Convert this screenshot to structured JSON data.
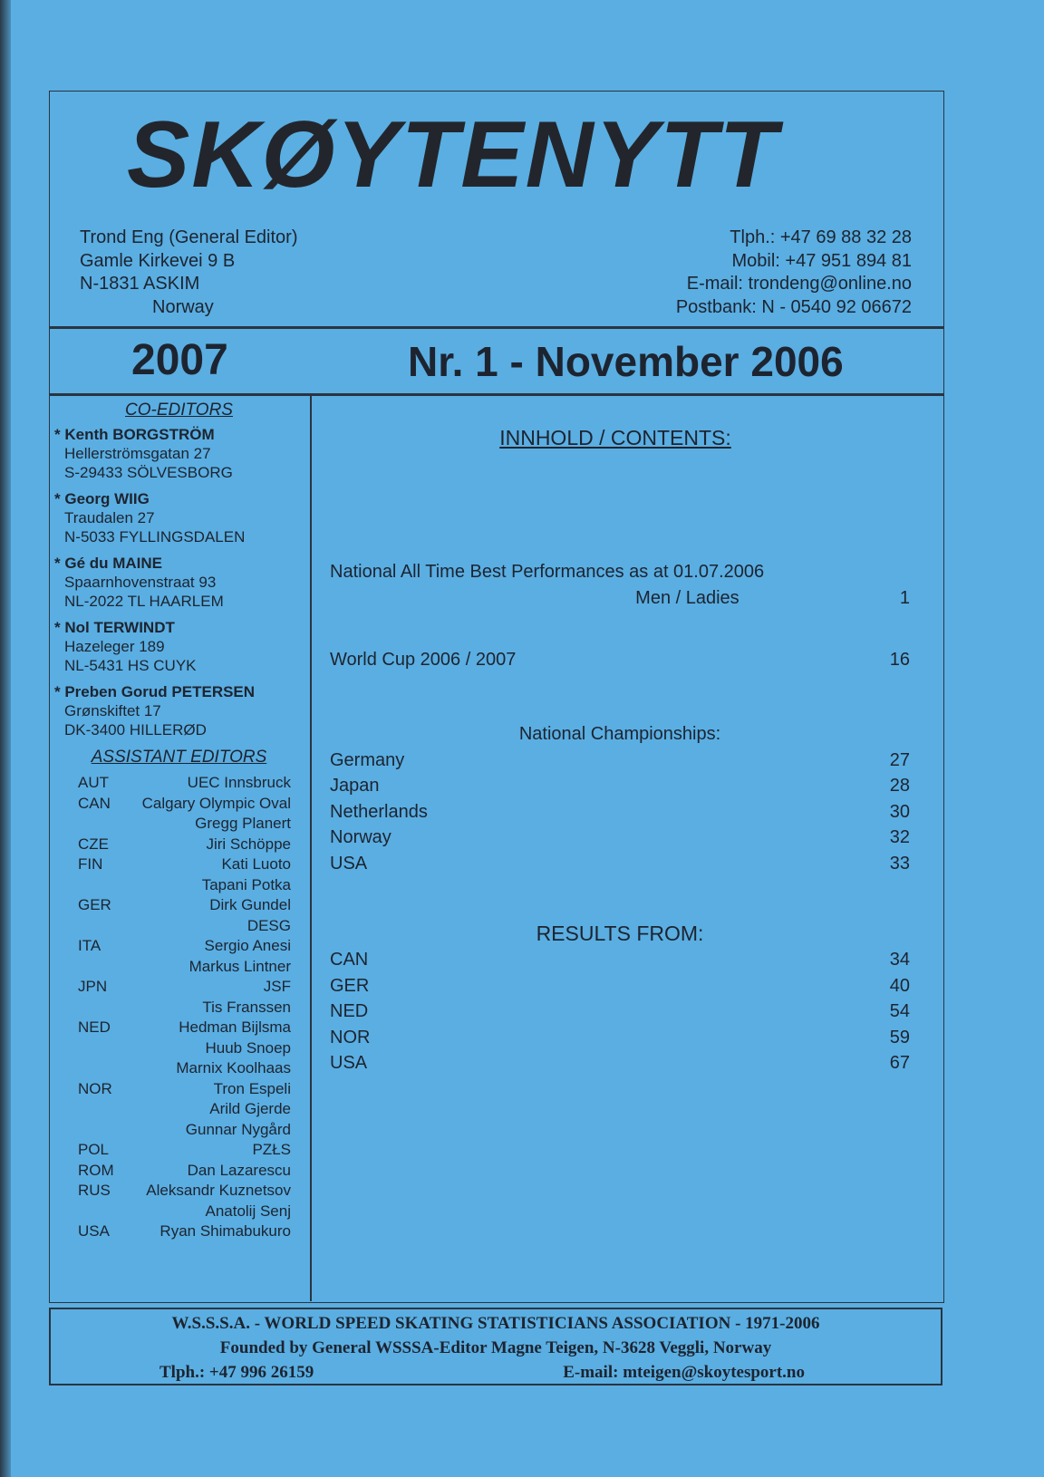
{
  "masthead": {
    "title": "SKØYTENYTT"
  },
  "editor": {
    "lines": [
      "Trond Eng (General Editor)",
      "Gamle Kirkevei 9 B",
      "N-1831 ASKIM",
      "Norway"
    ]
  },
  "contact": {
    "lines": [
      "Tlph.: +47  69 88 32 28",
      "Mobil:  +47  951 894 81",
      "E-mail:  trondeng@online.no",
      "Postbank:  N - 0540 92 06672"
    ]
  },
  "year": "2007",
  "issue": "Nr. 1 - November 2006",
  "co_editors": {
    "heading": "CO-EDITORS",
    "people": [
      {
        "name": "Kenth BORGSTRÖM",
        "addr1": "Hellerströmsgatan 27",
        "addr2": "S-29433 SÖLVESBORG"
      },
      {
        "name": "Georg WIIG",
        "addr1": "Traudalen 27",
        "addr2": "N-5033 FYLLINGSDALEN"
      },
      {
        "name": "Gé du MAINE",
        "addr1": "Spaarnhovenstraat 93",
        "addr2": "NL-2022 TL HAARLEM"
      },
      {
        "name": "Nol TERWINDT",
        "addr1": "Hazeleger 189",
        "addr2": "NL-5431 HS CUYK"
      },
      {
        "name": "Preben Gorud PETERSEN",
        "addr1": "Grønskiftet 17",
        "addr2": "DK-3400 HILLERØD"
      }
    ]
  },
  "assistant_editors": {
    "heading": "ASSISTANT EDITORS",
    "rows": [
      {
        "c": "AUT",
        "n": "UEC Innsbruck"
      },
      {
        "c": "CAN",
        "n": "Calgary Olympic Oval"
      },
      {
        "c": "",
        "n": "Gregg Planert"
      },
      {
        "c": "CZE",
        "n": "Jiri Schöppe"
      },
      {
        "c": "FIN",
        "n": "Kati Luoto"
      },
      {
        "c": "",
        "n": "Tapani Potka"
      },
      {
        "c": "GER",
        "n": "Dirk Gundel"
      },
      {
        "c": "",
        "n": "DESG"
      },
      {
        "c": "ITA",
        "n": "Sergio Anesi"
      },
      {
        "c": "",
        "n": "Markus Lintner"
      },
      {
        "c": "JPN",
        "n": "JSF"
      },
      {
        "c": "",
        "n": "Tis Franssen"
      },
      {
        "c": "NED",
        "n": "Hedman Bijlsma"
      },
      {
        "c": "",
        "n": "Huub Snoep"
      },
      {
        "c": "",
        "n": "Marnix Koolhaas"
      },
      {
        "c": "NOR",
        "n": "Tron Espeli"
      },
      {
        "c": "",
        "n": "Arild Gjerde"
      },
      {
        "c": "",
        "n": "Gunnar Nygård"
      },
      {
        "c": "POL",
        "n": "PZŁS"
      },
      {
        "c": "ROM",
        "n": "Dan Lazarescu"
      },
      {
        "c": "RUS",
        "n": "Aleksandr Kuznetsov"
      },
      {
        "c": "",
        "n": "Anatolij Senj"
      },
      {
        "c": "USA",
        "n": "Ryan Shimabukuro"
      }
    ]
  },
  "contents": {
    "heading": "INNHOLD / CONTENTS:",
    "atbp_line1": "National All Time Best Performances as at 01.07.2006",
    "atbp_line2": "Men / Ladies",
    "atbp_page": "1",
    "wc": "World Cup 2006 / 2007",
    "wc_page": "16",
    "nc_heading": "National Championships:",
    "nc": [
      {
        "t": "Germany",
        "p": "27"
      },
      {
        "t": "Japan",
        "p": "28"
      },
      {
        "t": "Netherlands",
        "p": "30"
      },
      {
        "t": "Norway",
        "p": "32"
      },
      {
        "t": "USA",
        "p": "33"
      }
    ],
    "rf_heading": "RESULTS FROM:",
    "rf": [
      {
        "t": "CAN",
        "p": "34"
      },
      {
        "t": "GER",
        "p": "40"
      },
      {
        "t": "NED",
        "p": "54"
      },
      {
        "t": "NOR",
        "p": "59"
      },
      {
        "t": "USA",
        "p": "67"
      }
    ]
  },
  "footer": {
    "line1": "W.S.S.S.A. -  WORLD SPEED SKATING STATISTICIANS ASSOCIATION - 1971-2006",
    "line2": "Founded by General WSSSA-Editor Magne Teigen, N-3628 Veggli, Norway",
    "phone": "Tlph.: +47 996 26159",
    "email": "E-mail: mteigen@skoytesport.no"
  }
}
